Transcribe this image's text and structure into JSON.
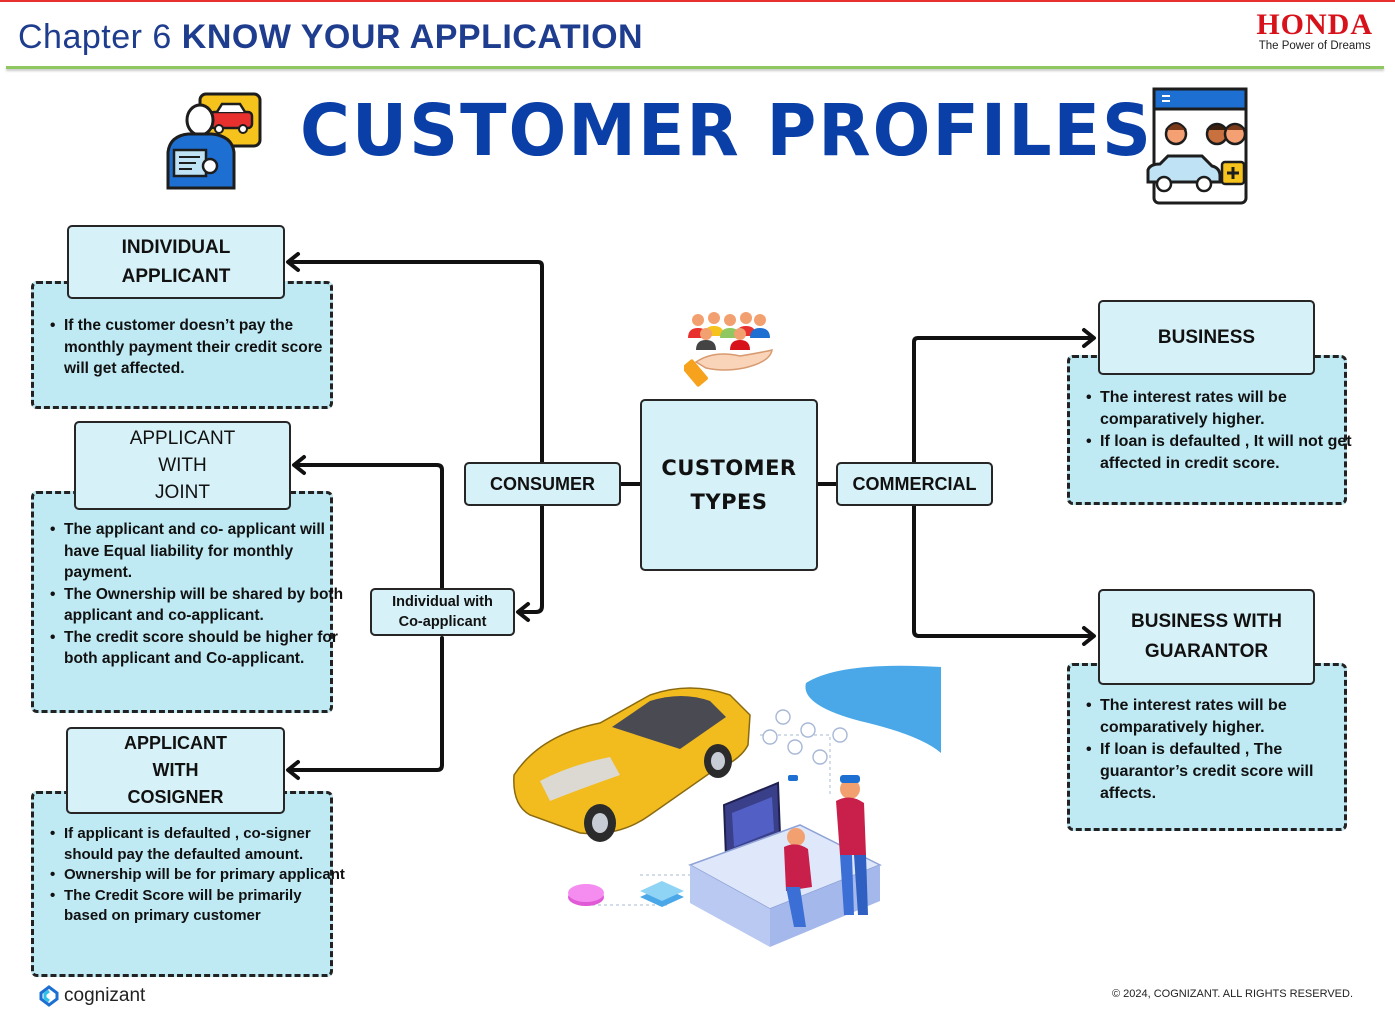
{
  "header": {
    "chapter": "Chapter 6",
    "chapter_title": "KNOW YOUR APPLICATION",
    "brand": "HONDA",
    "brand_tagline": "The Power of Dreams"
  },
  "title": "CUSTOMER PROFILES",
  "center": {
    "line1": "CUSTOMER",
    "line2": "TYPES"
  },
  "consumer_label": "CONSUMER",
  "commercial_label": "COMMERCIAL",
  "coapplicant_label": {
    "line1": "Individual with",
    "line2": "Co-applicant"
  },
  "left_profiles": [
    {
      "title1": "INDIVIDUAL",
      "title2": "APPLICANT",
      "title3": "",
      "points": [
        "If the customer doesn’t pay the monthly payment their credit score will get affected."
      ]
    },
    {
      "title1": "APPLICANT",
      "title2": "WITH",
      "title3": "JOINT",
      "points": [
        "The applicant and co- applicant will have Equal liability for monthly payment.",
        "The Ownership will be shared by both applicant and  co-applicant.",
        "The credit score should be higher for both applicant and Co-applicant."
      ]
    },
    {
      "title1": "APPLICANT",
      "title2": "WITH",
      "title3": "COSIGNER",
      "points": [
        "If applicant is defaulted , co-signer should pay the defaulted amount.",
        "Ownership will be for primary applicant",
        "The Credit Score will be primarily based on primary customer"
      ]
    }
  ],
  "right_profiles": [
    {
      "title1": "BUSINESS",
      "title2": "",
      "points": [
        "The interest rates will be comparatively  higher.",
        "If loan is defaulted , It will not get affected in credit score."
      ]
    },
    {
      "title1": "BUSINESS WITH",
      "title2": "GUARANTOR",
      "points": [
        "The interest rates will be comparatively higher.",
        "If loan is defaulted , The guarantor’s credit score will affects."
      ]
    }
  ],
  "footer": {
    "logo": "cognizant",
    "copyright": "© 2024, COGNIZANT. ALL RIGHTS RESERVED."
  },
  "colors": {
    "title_blue": "#0a3fa8",
    "box_fill": "#d6f1f7",
    "dash_fill": "#bfe9f3",
    "accent_green": "#8fc860",
    "honda_red": "#d8121b"
  }
}
